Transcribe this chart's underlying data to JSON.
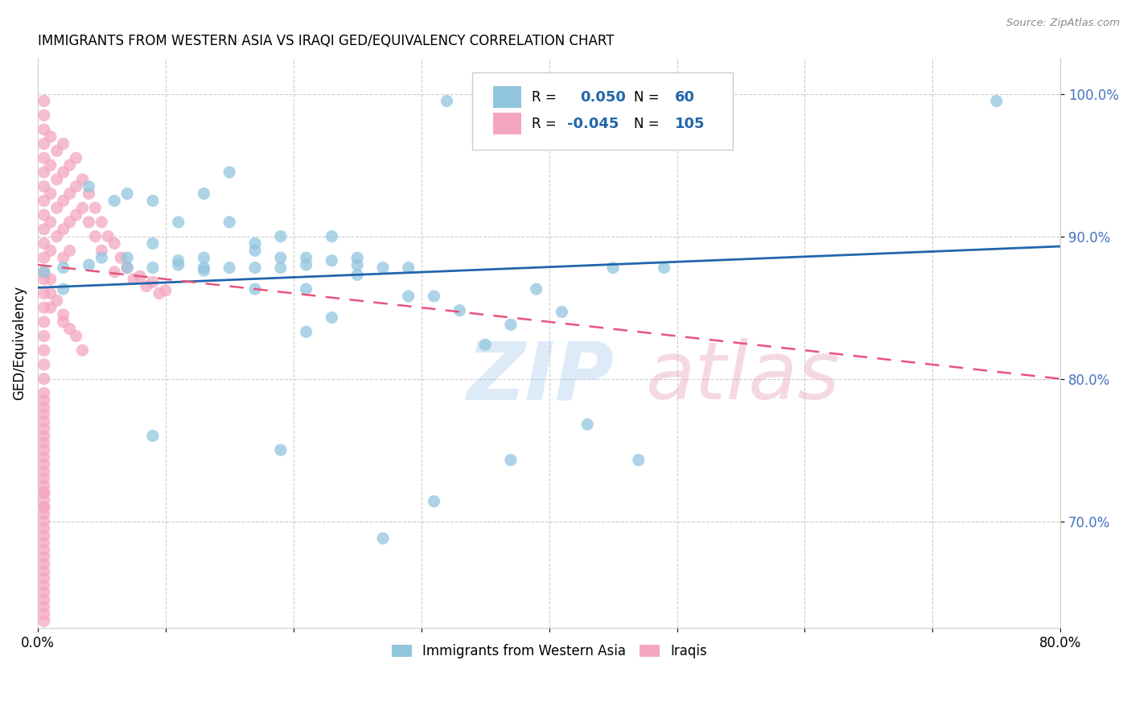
{
  "title": "IMMIGRANTS FROM WESTERN ASIA VS IRAQI GED/EQUIVALENCY CORRELATION CHART",
  "source": "Source: ZipAtlas.com",
  "ylabel": "GED/Equivalency",
  "ytick_labels": [
    "70.0%",
    "80.0%",
    "90.0%",
    "100.0%"
  ],
  "ytick_values": [
    0.7,
    0.8,
    0.9,
    1.0
  ],
  "xlim": [
    0.0,
    0.8
  ],
  "ylim": [
    0.625,
    1.025
  ],
  "legend_r_blue": "R =  0.050",
  "legend_n_blue": "N =  60",
  "legend_r_pink": "R = -0.045",
  "legend_n_pink": "N = 105",
  "blue_color": "#92c5de",
  "pink_color": "#f4a6c0",
  "trendline_blue_color": "#2166ac",
  "trendline_pink_color": "#e8547a",
  "blue_trend_x": [
    0.0,
    0.8
  ],
  "blue_trend_y": [
    0.864,
    0.893
  ],
  "pink_trend_x": [
    0.0,
    0.8
  ],
  "pink_trend_y": [
    0.88,
    0.8
  ],
  "blue_scatter_x": [
    0.32,
    0.005,
    0.04,
    0.06,
    0.09,
    0.11,
    0.13,
    0.04,
    0.07,
    0.09,
    0.13,
    0.17,
    0.19,
    0.21,
    0.23,
    0.25,
    0.15,
    0.17,
    0.19,
    0.07,
    0.11,
    0.15,
    0.21,
    0.25,
    0.29,
    0.02,
    0.05,
    0.09,
    0.11,
    0.13,
    0.19,
    0.23,
    0.27,
    0.31,
    0.35,
    0.41,
    0.45,
    0.49,
    0.37,
    0.02,
    0.07,
    0.17,
    0.21,
    0.29,
    0.33,
    0.15,
    0.09,
    0.23,
    0.19,
    0.25,
    0.75,
    0.31,
    0.27,
    0.37,
    0.43,
    0.47,
    0.39,
    0.13,
    0.17,
    0.21
  ],
  "blue_scatter_y": [
    0.995,
    0.875,
    0.935,
    0.925,
    0.925,
    0.91,
    0.93,
    0.88,
    0.885,
    0.895,
    0.885,
    0.89,
    0.9,
    0.885,
    0.9,
    0.885,
    0.945,
    0.895,
    0.885,
    0.93,
    0.88,
    0.91,
    0.88,
    0.88,
    0.878,
    0.878,
    0.885,
    0.878,
    0.883,
    0.876,
    0.878,
    0.883,
    0.878,
    0.858,
    0.824,
    0.847,
    0.878,
    0.878,
    0.838,
    0.863,
    0.878,
    0.863,
    0.863,
    0.858,
    0.848,
    0.878,
    0.76,
    0.843,
    0.75,
    0.873,
    0.995,
    0.714,
    0.688,
    0.743,
    0.768,
    0.743,
    0.863,
    0.878,
    0.878,
    0.833
  ],
  "pink_scatter_x": [
    0.005,
    0.005,
    0.005,
    0.005,
    0.005,
    0.005,
    0.005,
    0.005,
    0.005,
    0.005,
    0.005,
    0.005,
    0.005,
    0.005,
    0.005,
    0.005,
    0.005,
    0.005,
    0.005,
    0.005,
    0.005,
    0.005,
    0.005,
    0.005,
    0.005,
    0.005,
    0.005,
    0.005,
    0.005,
    0.005,
    0.01,
    0.01,
    0.01,
    0.01,
    0.01,
    0.015,
    0.015,
    0.015,
    0.015,
    0.02,
    0.02,
    0.02,
    0.02,
    0.02,
    0.025,
    0.025,
    0.025,
    0.025,
    0.03,
    0.03,
    0.03,
    0.035,
    0.035,
    0.04,
    0.04,
    0.045,
    0.045,
    0.05,
    0.05,
    0.055,
    0.06,
    0.06,
    0.065,
    0.07,
    0.075,
    0.08,
    0.085,
    0.09,
    0.095,
    0.1,
    0.005,
    0.005,
    0.005,
    0.005,
    0.005,
    0.005,
    0.005,
    0.005,
    0.005,
    0.005,
    0.005,
    0.005,
    0.005,
    0.005,
    0.005,
    0.005,
    0.005,
    0.005,
    0.005,
    0.005,
    0.005,
    0.005,
    0.005,
    0.005,
    0.005,
    0.005,
    0.01,
    0.01,
    0.01,
    0.015,
    0.02,
    0.02,
    0.025,
    0.03,
    0.035
  ],
  "pink_scatter_y": [
    0.995,
    0.985,
    0.975,
    0.965,
    0.955,
    0.945,
    0.935,
    0.925,
    0.915,
    0.905,
    0.895,
    0.885,
    0.875,
    0.87,
    0.86,
    0.85,
    0.84,
    0.83,
    0.82,
    0.81,
    0.8,
    0.79,
    0.78,
    0.77,
    0.76,
    0.75,
    0.74,
    0.73,
    0.72,
    0.71,
    0.97,
    0.95,
    0.93,
    0.91,
    0.89,
    0.96,
    0.94,
    0.92,
    0.9,
    0.965,
    0.945,
    0.925,
    0.905,
    0.885,
    0.95,
    0.93,
    0.91,
    0.89,
    0.955,
    0.935,
    0.915,
    0.94,
    0.92,
    0.93,
    0.91,
    0.92,
    0.9,
    0.91,
    0.89,
    0.9,
    0.895,
    0.875,
    0.885,
    0.878,
    0.87,
    0.872,
    0.865,
    0.868,
    0.86,
    0.862,
    0.785,
    0.775,
    0.765,
    0.755,
    0.745,
    0.735,
    0.725,
    0.715,
    0.705,
    0.695,
    0.685,
    0.675,
    0.665,
    0.655,
    0.645,
    0.635,
    0.7,
    0.69,
    0.68,
    0.67,
    0.66,
    0.65,
    0.64,
    0.63,
    0.72,
    0.71,
    0.87,
    0.86,
    0.85,
    0.855,
    0.84,
    0.845,
    0.835,
    0.83,
    0.82
  ]
}
